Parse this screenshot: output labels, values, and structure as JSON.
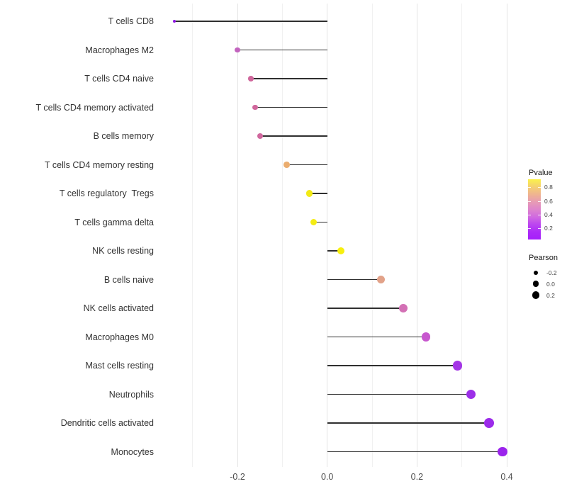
{
  "chart_data": {
    "type": "scatter",
    "variant": "lollipop",
    "orientation": "horizontal",
    "title": "",
    "xlabel": "",
    "ylabel": "",
    "categories": [
      "T cells CD8",
      "Macrophages M2",
      "T cells CD4 naive",
      "T cells CD4 memory activated",
      "B cells memory",
      "T cells CD4 memory resting",
      "T cells regulatory  Tregs",
      "T cells gamma delta",
      "NK cells resting",
      "B cells naive",
      "NK cells activated",
      "Macrophages M0",
      "Mast cells resting",
      "Neutrophils",
      "Dendritic cells activated",
      "Monocytes"
    ],
    "pearson": [
      -0.34,
      -0.2,
      -0.17,
      -0.16,
      -0.15,
      -0.09,
      -0.04,
      -0.03,
      0.03,
      0.12,
      0.17,
      0.22,
      0.29,
      0.32,
      0.36,
      0.39
    ],
    "pvalue_approx": [
      0.05,
      0.38,
      0.44,
      0.44,
      0.45,
      0.63,
      0.82,
      0.83,
      0.85,
      0.58,
      0.42,
      0.3,
      0.13,
      0.1,
      0.08,
      0.06
    ],
    "point_colors": [
      "#8E16E4",
      "#C263BE",
      "#D0679C",
      "#D0679C",
      "#D0689E",
      "#EBAD6F",
      "#F2EA15",
      "#F4EC13",
      "#F7EF0E",
      "#E2A289",
      "#D370B5",
      "#C757CE",
      "#A436E6",
      "#9C2FE8",
      "#9C2BEA",
      "#9B24EC"
    ],
    "baseline": 0.0,
    "stem_color": "#2f2f2f",
    "xlim": [
      -0.374,
      0.425
    ],
    "x_ticks": [
      -0.2,
      0.0,
      0.2,
      0.4
    ],
    "x_tick_labels": [
      "-0.2",
      "0.0",
      "0.2",
      "0.4"
    ],
    "x_minor_ticks": [
      -0.3,
      -0.1,
      0.1,
      0.3
    ],
    "grid": true,
    "legend_position": "right",
    "legends": {
      "pvalue": {
        "title": "Pvalue",
        "tick_labels": [
          "0.8",
          "0.6",
          "0.4",
          "0.2"
        ],
        "tick_values": [
          0.8,
          0.6,
          0.4,
          0.2
        ],
        "gradient_top_to_bottom": [
          "#FBF24A",
          "#F4D072",
          "#EFB490",
          "#E79BB4",
          "#DE85CC",
          "#D06AE0",
          "#BC45F0",
          "#AC2BF8",
          "#A51FFA"
        ]
      },
      "pearson": {
        "title": "Pearson",
        "items": [
          {
            "label": "-0.2",
            "diameter": 6.5
          },
          {
            "label": "0.0",
            "diameter": 8.5
          },
          {
            "label": "0.2",
            "diameter": 10.5
          }
        ]
      }
    }
  }
}
